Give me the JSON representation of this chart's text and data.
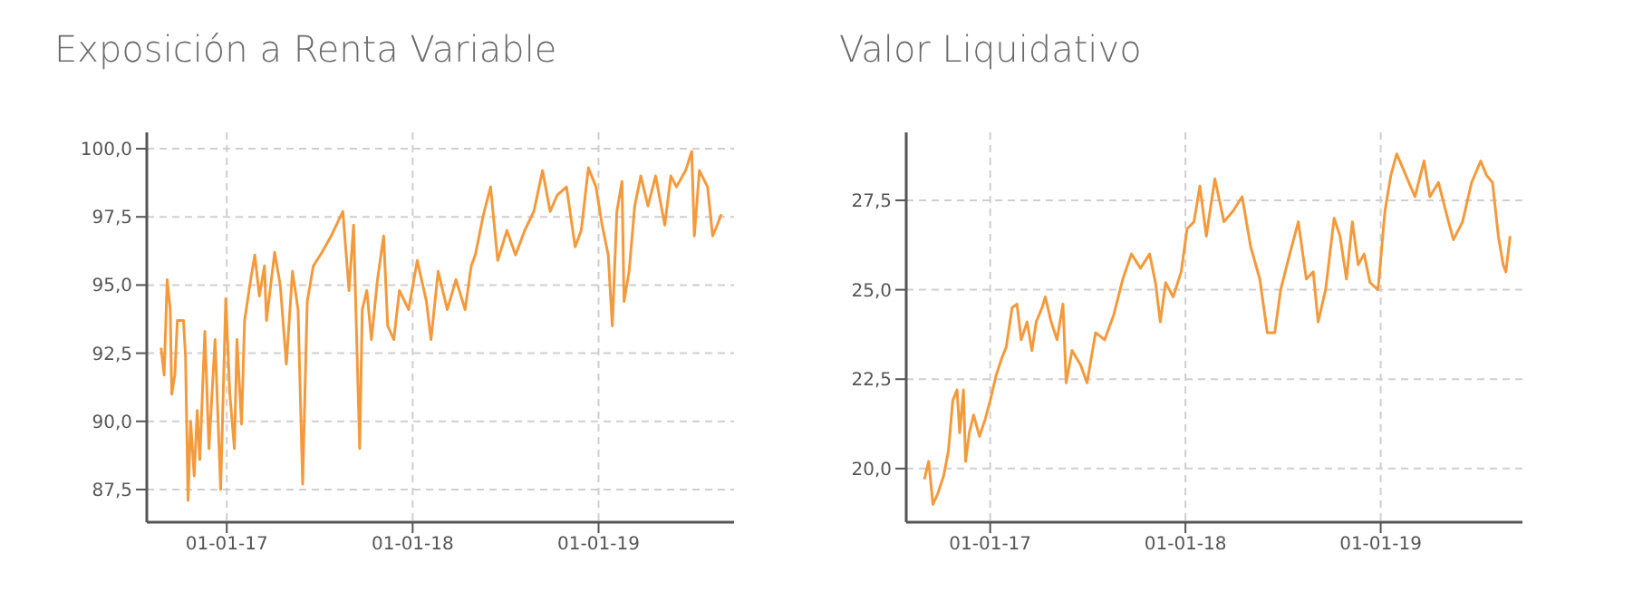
{
  "chart_data": [
    {
      "type": "line",
      "title": "Exposición a Renta Variable",
      "grid": true,
      "marker": "none",
      "line_style": "solid",
      "xlim": [
        "2016-07-28",
        "2019-09-24"
      ],
      "ylim": [
        86.3,
        100.6
      ],
      "yticks": [
        {
          "value": 87.5,
          "label": "87,5"
        },
        {
          "value": 90,
          "label": "90,0"
        },
        {
          "value": 92.5,
          "label": "92,5"
        },
        {
          "value": 95,
          "label": "95,0"
        },
        {
          "value": 97.5,
          "label": "97,5"
        },
        {
          "value": 100,
          "label": "100,0"
        }
      ],
      "xticks": [
        {
          "value": "2017-01-01",
          "label": "01-01-17"
        },
        {
          "value": "2018-01-01",
          "label": "01-01-18"
        },
        {
          "value": "2019-01-01",
          "label": "01-01-19"
        }
      ],
      "x": [
        "2016-08-25",
        "2016-08-31",
        "2016-09-06",
        "2016-09-12",
        "2016-09-15",
        "2016-09-21",
        "2016-09-26",
        "2016-10-08",
        "2016-10-12",
        "2016-10-17",
        "2016-10-22",
        "2016-10-29",
        "2016-11-04",
        "2016-11-09",
        "2016-11-19",
        "2016-11-27",
        "2016-12-09",
        "2016-12-20",
        "2016-12-30",
        "2017-01-07",
        "2017-01-16",
        "2017-01-21",
        "2017-01-30",
        "2017-02-05",
        "2017-02-17",
        "2017-02-25",
        "2017-03-06",
        "2017-03-16",
        "2017-03-20",
        "2017-04-05",
        "2017-04-16",
        "2017-04-28",
        "2017-05-10",
        "2017-05-21",
        "2017-05-30",
        "2017-06-08",
        "2017-06-20",
        "2017-07-07",
        "2017-07-25",
        "2017-08-17",
        "2017-08-29",
        "2017-09-07",
        "2017-09-19",
        "2017-09-24",
        "2017-10-03",
        "2017-10-12",
        "2017-10-24",
        "2017-11-05",
        "2017-11-13",
        "2017-11-25",
        "2017-12-06",
        "2017-12-24",
        "2018-01-10",
        "2018-01-28",
        "2018-02-06",
        "2018-02-20",
        "2018-03-10",
        "2018-03-27",
        "2018-04-14",
        "2018-04-26",
        "2018-05-04",
        "2018-05-19",
        "2018-06-03",
        "2018-06-17",
        "2018-07-05",
        "2018-07-22",
        "2018-08-09",
        "2018-08-27",
        "2018-09-13",
        "2018-09-28",
        "2018-10-12",
        "2018-10-30",
        "2018-11-16",
        "2018-11-28",
        "2018-12-12",
        "2018-12-27",
        "2019-01-08",
        "2019-01-20",
        "2019-01-28",
        "2019-02-06",
        "2019-02-16",
        "2019-02-20",
        "2019-03-02",
        "2019-03-13",
        "2019-03-25",
        "2019-04-08",
        "2019-04-23",
        "2019-05-11",
        "2019-05-23",
        "2019-06-03",
        "2019-06-21",
        "2019-07-03",
        "2019-07-08",
        "2019-07-18",
        "2019-08-03",
        "2019-08-13",
        "2019-08-22",
        "2019-08-30"
      ],
      "series": [
        {
          "color": "#f39a3c",
          "values": [
            92.7,
            91.7,
            95.2,
            94.1,
            91.0,
            91.7,
            93.7,
            93.7,
            92.4,
            87.1,
            90.0,
            88.0,
            90.4,
            88.6,
            93.3,
            89.0,
            93.0,
            87.5,
            94.5,
            91.0,
            89.0,
            93.0,
            89.9,
            93.7,
            95.2,
            96.1,
            94.6,
            95.7,
            93.7,
            96.2,
            95.0,
            92.1,
            95.5,
            94.1,
            87.7,
            94.4,
            95.7,
            96.2,
            96.8,
            97.7,
            94.8,
            97.2,
            89.0,
            94.1,
            94.8,
            93.0,
            95.2,
            96.8,
            93.5,
            93.0,
            94.8,
            94.1,
            95.9,
            94.4,
            93.0,
            95.5,
            94.1,
            95.2,
            94.1,
            95.7,
            96.1,
            97.5,
            98.6,
            95.9,
            97.0,
            96.1,
            97.0,
            97.7,
            99.2,
            97.7,
            98.3,
            98.6,
            96.4,
            97.0,
            99.3,
            98.6,
            97.2,
            96.1,
            93.5,
            97.7,
            98.8,
            94.4,
            95.5,
            97.9,
            99.0,
            97.9,
            99.0,
            97.2,
            99.0,
            98.6,
            99.2,
            99.9,
            96.8,
            99.2,
            98.6,
            96.8,
            97.2,
            97.6
          ]
        }
      ]
    },
    {
      "type": "line",
      "title": "Valor Liquidativo",
      "grid": true,
      "marker": "none",
      "line_style": "solid",
      "xlim": [
        "2016-07-28",
        "2019-09-23"
      ],
      "ylim": [
        18.5,
        29.4
      ],
      "yticks": [
        {
          "value": 20,
          "label": "20,0"
        },
        {
          "value": 22.5,
          "label": "22,5"
        },
        {
          "value": 25,
          "label": "25,0"
        },
        {
          "value": 27.5,
          "label": "27,5"
        }
      ],
      "xticks": [
        {
          "value": "2017-01-01",
          "label": "01-01-17"
        },
        {
          "value": "2018-01-01",
          "label": "01-01-18"
        },
        {
          "value": "2019-01-01",
          "label": "01-01-19"
        }
      ],
      "x": [
        "2016-08-31",
        "2016-09-08",
        "2016-09-16",
        "2016-09-25",
        "2016-10-06",
        "2016-10-15",
        "2016-10-23",
        "2016-10-31",
        "2016-11-05",
        "2016-11-12",
        "2016-11-16",
        "2016-11-23",
        "2016-12-01",
        "2016-12-12",
        "2016-12-23",
        "2017-01-01",
        "2017-01-12",
        "2017-01-23",
        "2017-01-31",
        "2017-02-11",
        "2017-02-20",
        "2017-02-28",
        "2017-03-11",
        "2017-03-20",
        "2017-03-28",
        "2017-04-08",
        "2017-04-14",
        "2017-04-25",
        "2017-05-06",
        "2017-05-17",
        "2017-05-23",
        "2017-06-03",
        "2017-06-19",
        "2017-07-01",
        "2017-07-17",
        "2017-08-03",
        "2017-08-20",
        "2017-09-06",
        "2017-09-22",
        "2017-10-09",
        "2017-10-26",
        "2017-11-06",
        "2017-11-15",
        "2017-11-25",
        "2017-12-09",
        "2017-12-24",
        "2018-01-04",
        "2018-01-17",
        "2018-01-28",
        "2018-02-09",
        "2018-02-25",
        "2018-03-14",
        "2018-03-31",
        "2018-04-17",
        "2018-05-03",
        "2018-05-20",
        "2018-06-03",
        "2018-06-17",
        "2018-06-28",
        "2018-07-15",
        "2018-07-31",
        "2018-08-15",
        "2018-08-28",
        "2018-09-06",
        "2018-09-20",
        "2018-10-06",
        "2018-10-17",
        "2018-10-29",
        "2018-11-09",
        "2018-11-20",
        "2018-12-01",
        "2018-12-12",
        "2018-12-27",
        "2019-01-09",
        "2019-01-20",
        "2019-01-31",
        "2019-02-17",
        "2019-03-06",
        "2019-03-23",
        "2019-04-03",
        "2019-04-19",
        "2019-05-06",
        "2019-05-17",
        "2019-06-03",
        "2019-06-20",
        "2019-07-07",
        "2019-07-18",
        "2019-07-29",
        "2019-08-09",
        "2019-08-18",
        "2019-08-23",
        "2019-08-31"
      ],
      "series": [
        {
          "color": "#f39a3c",
          "values": [
            19.7,
            20.2,
            19.0,
            19.3,
            19.8,
            20.5,
            21.9,
            22.2,
            21.0,
            22.2,
            20.2,
            21.0,
            21.5,
            20.9,
            21.4,
            21.9,
            22.6,
            23.1,
            23.4,
            24.5,
            24.6,
            23.6,
            24.1,
            23.3,
            24.1,
            24.5,
            24.8,
            24.1,
            23.6,
            24.6,
            22.4,
            23.3,
            22.9,
            22.4,
            23.8,
            23.6,
            24.3,
            25.3,
            26.0,
            25.6,
            26.0,
            25.2,
            24.1,
            25.2,
            24.8,
            25.5,
            26.7,
            26.9,
            27.9,
            26.5,
            28.1,
            26.9,
            27.2,
            27.6,
            26.2,
            25.3,
            23.8,
            23.8,
            25.0,
            26.0,
            26.9,
            25.3,
            25.5,
            24.1,
            25.0,
            27.0,
            26.5,
            25.3,
            26.9,
            25.7,
            26.0,
            25.2,
            25.0,
            27.2,
            28.2,
            28.8,
            28.2,
            27.6,
            28.6,
            27.6,
            28.0,
            27.0,
            26.4,
            26.9,
            28.0,
            28.6,
            28.2,
            28.0,
            26.5,
            25.7,
            25.5,
            26.5
          ]
        }
      ]
    }
  ]
}
